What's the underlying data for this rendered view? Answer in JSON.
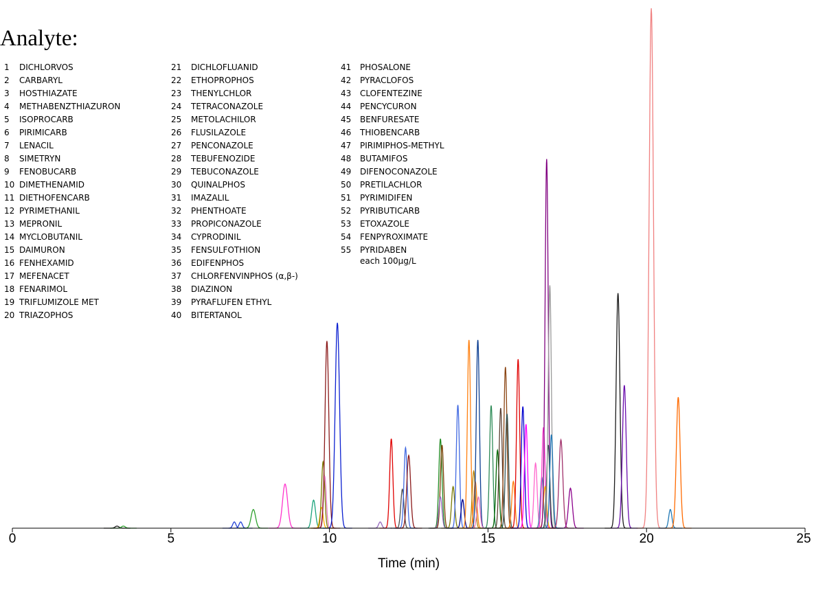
{
  "chart_data": {
    "type": "line",
    "title": "",
    "xlabel": "Time (min)",
    "ylabel": "",
    "xlim": [
      0,
      25
    ],
    "ylim": [
      0,
      1
    ],
    "x_ticks": [
      "0",
      "5",
      "10",
      "15",
      "20",
      "25"
    ],
    "grid": false,
    "legend": {
      "title": "Analyte:",
      "placement": "top-left",
      "entries": [
        {
          "num": "1",
          "name": "DICHLORVOS"
        },
        {
          "num": "2",
          "name": "CARBARYL"
        },
        {
          "num": "3",
          "name": "HOSTHIAZATE"
        },
        {
          "num": "4",
          "name": "METHABENZTHIAZURON"
        },
        {
          "num": "5",
          "name": "ISOPROCARB"
        },
        {
          "num": "6",
          "name": "PIRIMICARB"
        },
        {
          "num": "7",
          "name": "LENACIL"
        },
        {
          "num": "8",
          "name": "SIMETRYN"
        },
        {
          "num": "9",
          "name": "FENOBUCARB"
        },
        {
          "num": "10",
          "name": "DIMETHENAMID"
        },
        {
          "num": "11",
          "name": "DIETHOFENCARB"
        },
        {
          "num": "12",
          "name": "PYRIMETHANIL"
        },
        {
          "num": "13",
          "name": "MEPRONIL"
        },
        {
          "num": "14",
          "name": "MYCLOBUTANIL"
        },
        {
          "num": "15",
          "name": "DAIMURON"
        },
        {
          "num": "16",
          "name": "FENHEXAMID"
        },
        {
          "num": "17",
          "name": "MEFENACET"
        },
        {
          "num": "18",
          "name": "FENARIMOL"
        },
        {
          "num": "19",
          "name": "TRIFLUMIZOLE MET"
        },
        {
          "num": "20",
          "name": "TRIAZOPHOS"
        },
        {
          "num": "21",
          "name": "DICHLOFLUANID"
        },
        {
          "num": "22",
          "name": "ETHOPROPHOS"
        },
        {
          "num": "23",
          "name": "THENYLCHLOR"
        },
        {
          "num": "24",
          "name": "TETRACONAZOLE"
        },
        {
          "num": "25",
          "name": "METOLACHILOR"
        },
        {
          "num": "26",
          "name": "FLUSILAZOLE"
        },
        {
          "num": "27",
          "name": "PENCONAZOLE"
        },
        {
          "num": "28",
          "name": "TEBUFENOZIDE"
        },
        {
          "num": "29",
          "name": "TEBUCONAZOLE"
        },
        {
          "num": "30",
          "name": "QUINALPHOS"
        },
        {
          "num": "31",
          "name": "IMAZALIL"
        },
        {
          "num": "32",
          "name": "PHENTHOATE"
        },
        {
          "num": "33",
          "name": "PROPICONAZOLE"
        },
        {
          "num": "34",
          "name": "CYPRODINIL"
        },
        {
          "num": "35",
          "name": "FENSULFOTHION"
        },
        {
          "num": "36",
          "name": "EDIFENPHOS"
        },
        {
          "num": "37",
          "name": "CHLORFENVINPHOS (α,β-)"
        },
        {
          "num": "38",
          "name": "DIAZINON"
        },
        {
          "num": "39",
          "name": "PYRAFLUFEN ETHYL"
        },
        {
          "num": "40",
          "name": "BITERTANOL"
        },
        {
          "num": "41",
          "name": "PHOSALONE"
        },
        {
          "num": "42",
          "name": "PYRACLOFOS"
        },
        {
          "num": "43",
          "name": "CLOFENTEZINE"
        },
        {
          "num": "44",
          "name": "PENCYCURON"
        },
        {
          "num": "45",
          "name": "BENFURESATE"
        },
        {
          "num": "46",
          "name": "THIOBENCARB"
        },
        {
          "num": "47",
          "name": "PIRIMIPHOS-METHYL"
        },
        {
          "num": "48",
          "name": "BUTAMIFOS"
        },
        {
          "num": "49",
          "name": "DIFENOCONAZOLE"
        },
        {
          "num": "50",
          "name": "PRETILACHLOR"
        },
        {
          "num": "51",
          "name": "PYRIMIDIFEN"
        },
        {
          "num": "52",
          "name": "PYRIBUTICARB"
        },
        {
          "num": "53",
          "name": "ETOXAZOLE"
        },
        {
          "num": "54",
          "name": "FENPYROXIMATE"
        },
        {
          "num": "55",
          "name": "PYRIDABEN"
        }
      ],
      "note": "each 100μg/L"
    },
    "peaks": [
      {
        "t": 3.3,
        "h": 0.004,
        "w": 0.06,
        "color": "#1a1a1a"
      },
      {
        "t": 3.5,
        "h": 0.004,
        "w": 0.06,
        "color": "#2ca02c"
      },
      {
        "t": 7.0,
        "h": 0.012,
        "w": 0.05,
        "color": "#1f3fd6"
      },
      {
        "t": 7.2,
        "h": 0.012,
        "w": 0.05,
        "color": "#1f3fd6"
      },
      {
        "t": 7.6,
        "h": 0.036,
        "w": 0.07,
        "color": "#2ca02c"
      },
      {
        "t": 8.6,
        "h": 0.085,
        "w": 0.08,
        "color": "#ff33cc"
      },
      {
        "t": 9.5,
        "h": 0.054,
        "w": 0.06,
        "color": "#1aa37a"
      },
      {
        "t": 9.75,
        "h": 0.04,
        "w": 0.05,
        "color": "#ffb000"
      },
      {
        "t": 9.8,
        "h": 0.128,
        "w": 0.05,
        "color": "#7a7a00"
      },
      {
        "t": 9.85,
        "h": 0.1,
        "w": 0.05,
        "color": "#e377c2"
      },
      {
        "t": 9.92,
        "h": 0.36,
        "w": 0.06,
        "color": "#8b1a1a"
      },
      {
        "t": 10.25,
        "h": 0.395,
        "w": 0.07,
        "color": "#0a1fd0"
      },
      {
        "t": 11.6,
        "h": 0.012,
        "w": 0.05,
        "color": "#9467bd"
      },
      {
        "t": 11.95,
        "h": 0.172,
        "w": 0.05,
        "color": "#e00000"
      },
      {
        "t": 12.3,
        "h": 0.075,
        "w": 0.05,
        "color": "#4b4b4b"
      },
      {
        "t": 12.4,
        "h": 0.155,
        "w": 0.05,
        "color": "#4169e1"
      },
      {
        "t": 12.5,
        "h": 0.14,
        "w": 0.06,
        "color": "#8b1a1a"
      },
      {
        "t": 13.5,
        "h": 0.172,
        "w": 0.05,
        "color": "#228b22"
      },
      {
        "t": 13.55,
        "h": 0.16,
        "w": 0.05,
        "color": "#7a3b00"
      },
      {
        "t": 13.5,
        "h": 0.06,
        "w": 0.05,
        "color": "#9467bd"
      },
      {
        "t": 13.9,
        "h": 0.08,
        "w": 0.05,
        "color": "#7a7a00"
      },
      {
        "t": 14.05,
        "h": 0.237,
        "w": 0.05,
        "color": "#4169e1"
      },
      {
        "t": 14.2,
        "h": 0.055,
        "w": 0.05,
        "color": "#00008b"
      },
      {
        "t": 14.4,
        "h": 0.362,
        "w": 0.05,
        "color": "#ff7f0e"
      },
      {
        "t": 14.55,
        "h": 0.11,
        "w": 0.05,
        "color": "#b8860b"
      },
      {
        "t": 14.6,
        "h": 0.09,
        "w": 0.05,
        "color": "#ff7f0e"
      },
      {
        "t": 14.68,
        "h": 0.362,
        "w": 0.05,
        "color": "#0b3d91"
      },
      {
        "t": 14.7,
        "h": 0.06,
        "w": 0.05,
        "color": "#e377c2"
      },
      {
        "t": 15.1,
        "h": 0.236,
        "w": 0.05,
        "color": "#2e8b57"
      },
      {
        "t": 15.3,
        "h": 0.15,
        "w": 0.05,
        "color": "#006400"
      },
      {
        "t": 15.4,
        "h": 0.231,
        "w": 0.05,
        "color": "#5c4033"
      },
      {
        "t": 15.55,
        "h": 0.31,
        "w": 0.05,
        "color": "#8b4513"
      },
      {
        "t": 15.6,
        "h": 0.22,
        "w": 0.05,
        "color": "#2f4f4f"
      },
      {
        "t": 15.8,
        "h": 0.09,
        "w": 0.05,
        "color": "#ff7f0e"
      },
      {
        "t": 15.95,
        "h": 0.325,
        "w": 0.05,
        "color": "#e00000"
      },
      {
        "t": 16.1,
        "h": 0.234,
        "w": 0.05,
        "color": "#0000cd"
      },
      {
        "t": 16.2,
        "h": 0.2,
        "w": 0.05,
        "color": "#ff00ff"
      },
      {
        "t": 16.5,
        "h": 0.125,
        "w": 0.05,
        "color": "#ff66cc"
      },
      {
        "t": 16.7,
        "h": 0.098,
        "w": 0.05,
        "color": "#4682b4"
      },
      {
        "t": 16.75,
        "h": 0.194,
        "w": 0.05,
        "color": "#ff33cc"
      },
      {
        "t": 16.8,
        "h": 0.08,
        "w": 0.05,
        "color": "#ffa500"
      },
      {
        "t": 16.85,
        "h": 0.71,
        "w": 0.05,
        "color": "#800080"
      },
      {
        "t": 16.9,
        "h": 0.16,
        "w": 0.05,
        "color": "#2f4f4f"
      },
      {
        "t": 16.95,
        "h": 0.467,
        "w": 0.05,
        "color": "#999999"
      },
      {
        "t": 17.0,
        "h": 0.18,
        "w": 0.05,
        "color": "#1f77b4"
      },
      {
        "t": 17.3,
        "h": 0.17,
        "w": 0.06,
        "color": "#a0306a"
      },
      {
        "t": 17.6,
        "h": 0.077,
        "w": 0.06,
        "color": "#8b008b"
      },
      {
        "t": 19.1,
        "h": 0.452,
        "w": 0.06,
        "color": "#1a1a1a"
      },
      {
        "t": 19.3,
        "h": 0.275,
        "w": 0.06,
        "color": "#6a0dad"
      },
      {
        "t": 20.15,
        "h": 1.0,
        "w": 0.07,
        "color": "#f08080"
      },
      {
        "t": 20.75,
        "h": 0.036,
        "w": 0.05,
        "color": "#1f77b4"
      },
      {
        "t": 21.0,
        "h": 0.252,
        "w": 0.06,
        "color": "#ff6a00"
      }
    ]
  }
}
